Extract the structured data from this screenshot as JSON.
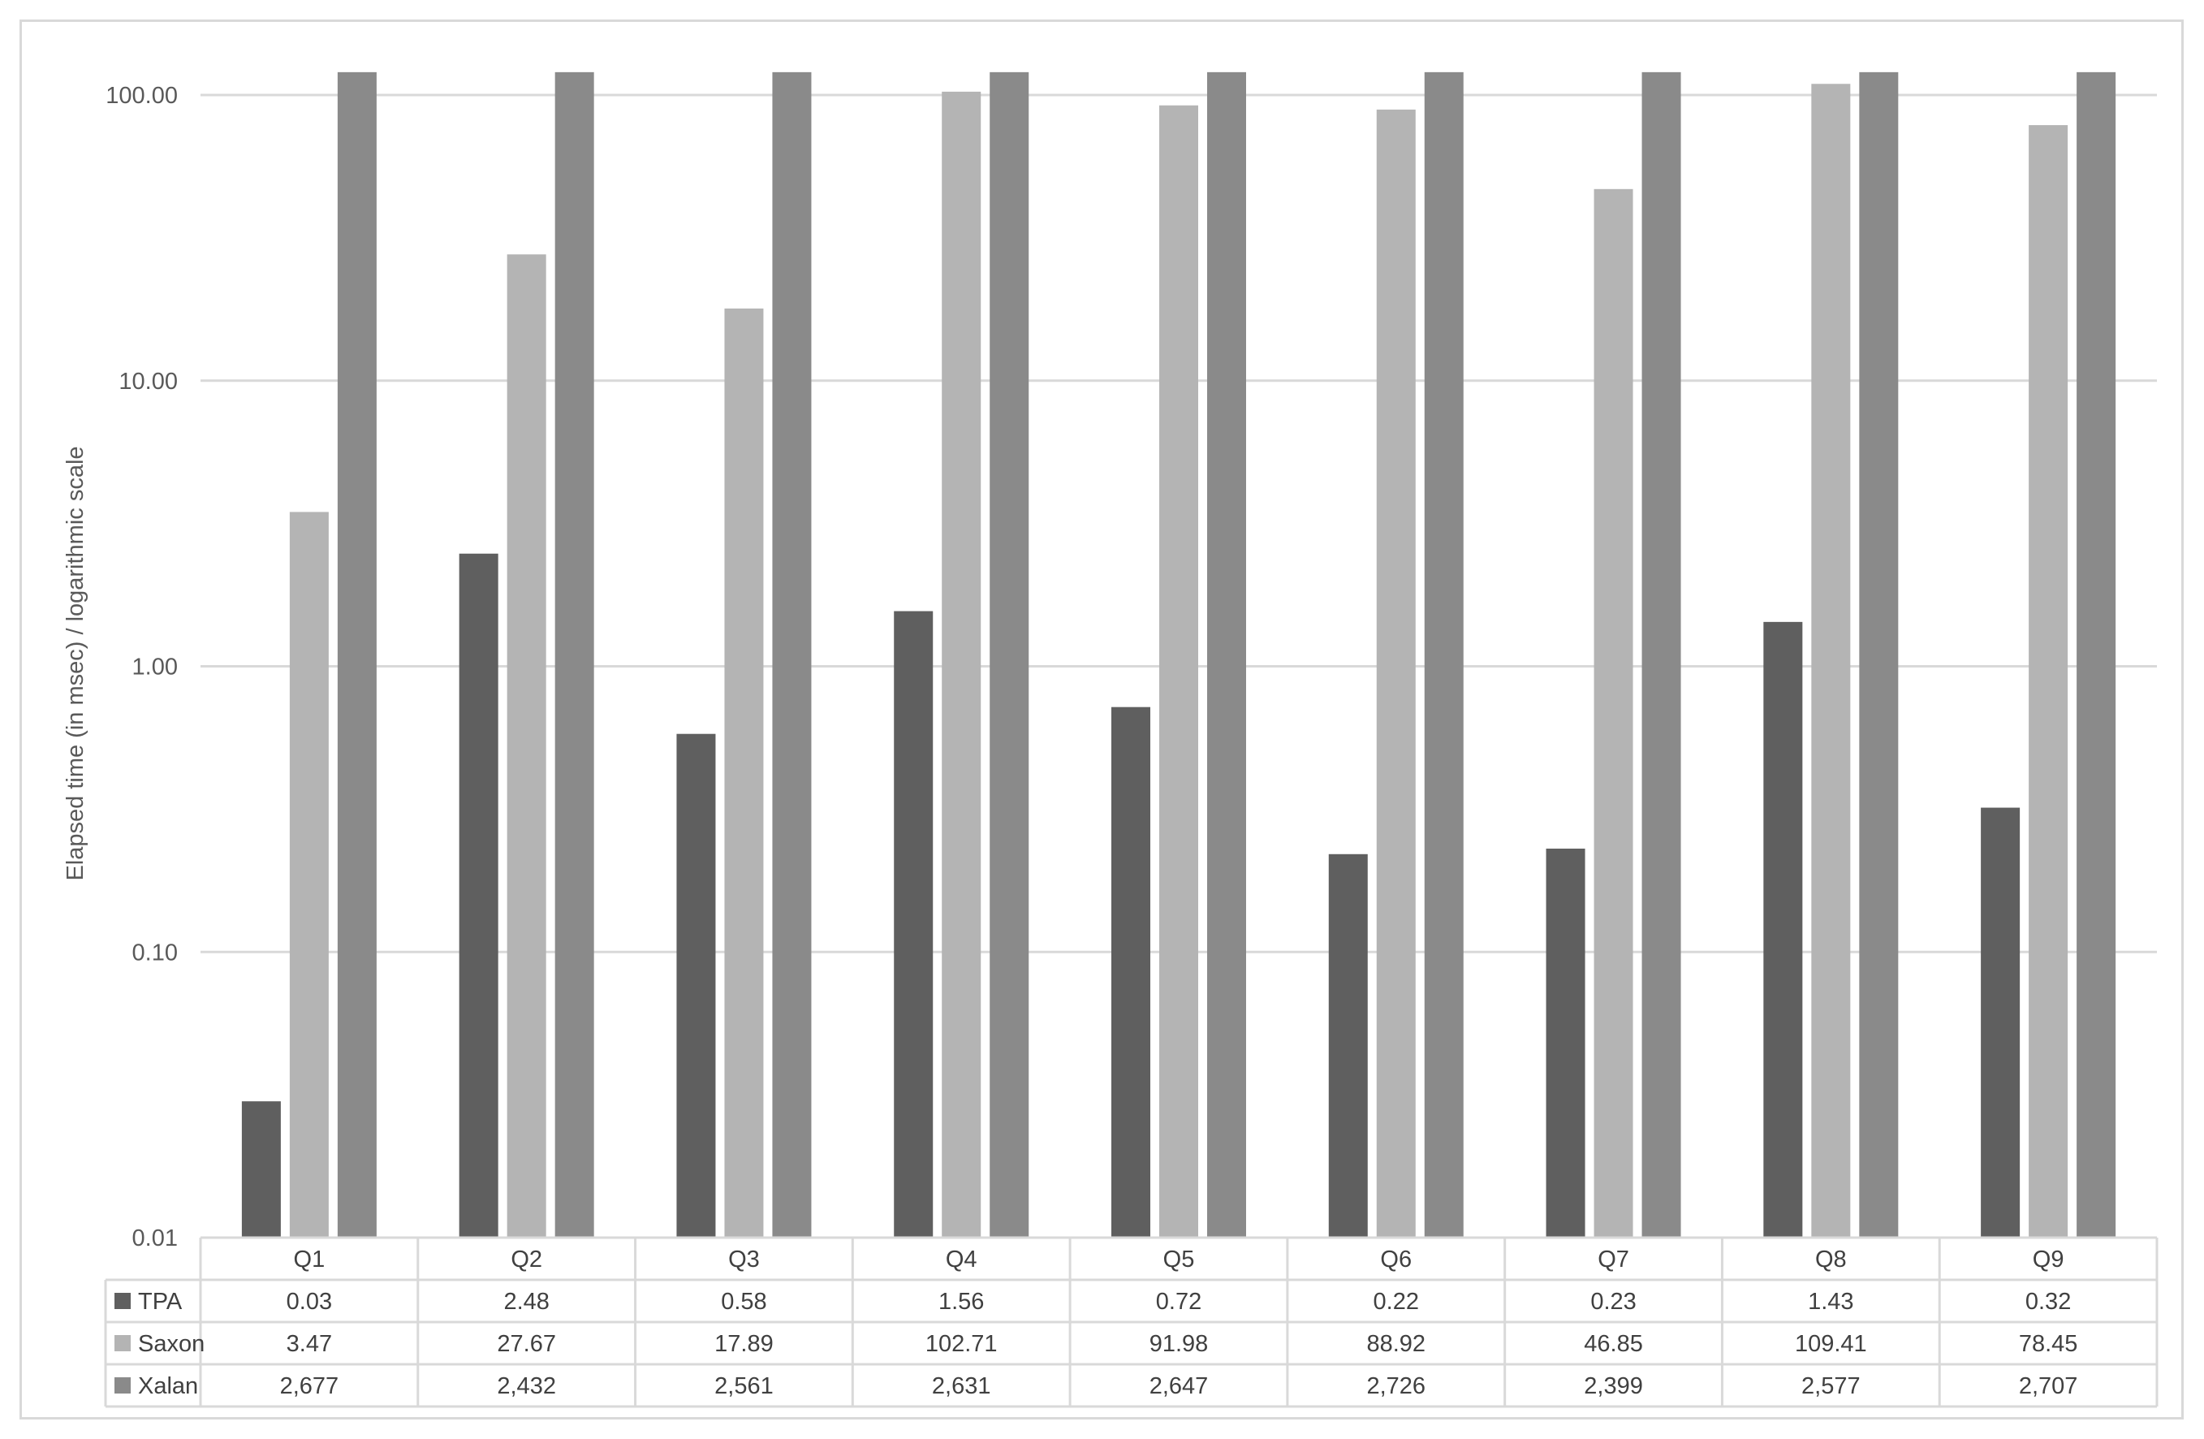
{
  "chart_data": {
    "type": "bar",
    "title": "",
    "xlabel": "",
    "ylabel": "Elapsed time (in msec) / logarithmic scale",
    "yscale": "log",
    "ylim": [
      0.01,
      100
    ],
    "yticks": [
      "0.01",
      "0.10",
      "1.00",
      "10.00",
      "100.00"
    ],
    "grid": true,
    "legend": "data-table-left",
    "categories": [
      "Q1",
      "Q2",
      "Q3",
      "Q4",
      "Q5",
      "Q6",
      "Q7",
      "Q8",
      "Q9"
    ],
    "series": [
      {
        "name": "TPA",
        "color": "#5f5f5f",
        "values": [
          0.03,
          2.48,
          0.58,
          1.56,
          0.72,
          0.22,
          0.23,
          1.43,
          0.32
        ],
        "labels": [
          "0.03",
          "2.48",
          "0.58",
          "1.56",
          "0.72",
          "0.22",
          "0.23",
          "1.43",
          "0.32"
        ]
      },
      {
        "name": "Saxon",
        "color": "#b4b4b4",
        "values": [
          3.47,
          27.67,
          17.89,
          102.71,
          91.98,
          88.92,
          46.85,
          109.41,
          78.45
        ],
        "labels": [
          "3.47",
          "27.67",
          "17.89",
          "102.71",
          "91.98",
          "88.92",
          "46.85",
          "109.41",
          "78.45"
        ]
      },
      {
        "name": "Xalan",
        "color": "#8a8a8a",
        "values": [
          2677,
          2432,
          2561,
          2631,
          2647,
          2726,
          2399,
          2577,
          2707
        ],
        "labels": [
          "2,677",
          "2,432",
          "2,561",
          "2,631",
          "2,647",
          "2,726",
          "2,399",
          "2,577",
          "2,707"
        ]
      }
    ]
  }
}
